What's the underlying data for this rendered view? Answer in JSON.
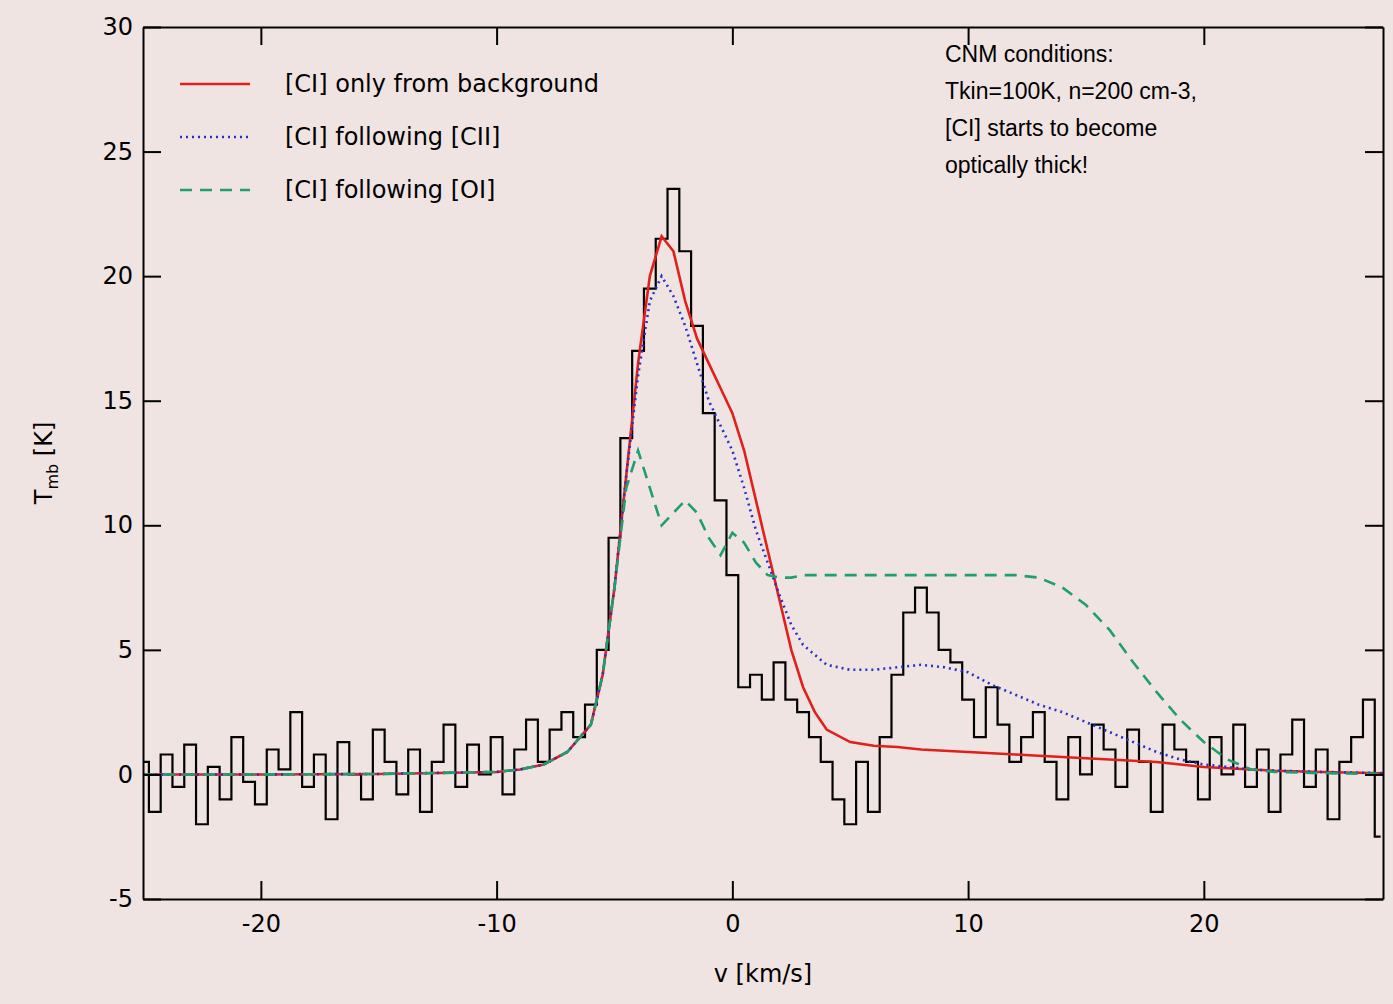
{
  "chart_data": {
    "type": "line",
    "xlabel": "v [km/s]",
    "ylabel": "Tmb [K]",
    "xlim": [
      -25,
      27.6
    ],
    "ylim": [
      -5,
      30
    ],
    "xticks": [
      -20,
      -10,
      0,
      10,
      20
    ],
    "yticks": [
      -5,
      0,
      5,
      10,
      15,
      20,
      25,
      30
    ],
    "legend": "upper left",
    "annotation": [
      "CNM conditions:",
      "Tkin=100K, n=200 cm-3,",
      "[CI] starts to become",
      "optically thick!"
    ],
    "series": [
      {
        "type": "step",
        "color": "#000000",
        "line_style": "solid",
        "x": [
          -25,
          -24.5,
          -24,
          -23.5,
          -23,
          -22.5,
          -22,
          -21.5,
          -21,
          -20.5,
          -20,
          -19.5,
          -19,
          -18.5,
          -18,
          -17.5,
          -17,
          -16.5,
          -16,
          -15.5,
          -15,
          -14.5,
          -14,
          -13.5,
          -13,
          -12.5,
          -12,
          -11.5,
          -11,
          -10.5,
          -10,
          -9.5,
          -9,
          -8.5,
          -8,
          -7.5,
          -7,
          -6.5,
          -6,
          -5.5,
          -5,
          -4.5,
          -4,
          -3.5,
          -3,
          -2.5,
          -2,
          -1.5,
          -1,
          -0.5,
          0,
          0.5,
          1,
          1.5,
          2,
          2.5,
          3,
          3.5,
          4,
          4.5,
          5,
          5.5,
          6,
          6.5,
          7,
          7.5,
          8,
          8.5,
          9,
          9.5,
          10,
          10.5,
          11,
          11.5,
          12,
          12.5,
          13,
          13.5,
          14,
          14.5,
          15,
          15.5,
          16,
          16.5,
          17,
          17.5,
          18,
          18.5,
          19,
          19.5,
          20,
          20.5,
          21,
          21.5,
          22,
          22.5,
          23,
          23.5,
          24,
          24.5,
          25,
          25.5,
          26,
          26.5,
          27,
          27.5
        ],
        "values": [
          0.5,
          -1.5,
          0.8,
          -0.5,
          1.2,
          -2.0,
          0.3,
          -1.0,
          1.5,
          -0.3,
          -1.2,
          1.0,
          0.2,
          2.5,
          -0.5,
          0.8,
          -1.8,
          1.3,
          0.0,
          -1.0,
          1.8,
          0.5,
          -0.8,
          1.0,
          -1.5,
          0.5,
          2.0,
          -0.5,
          1.2,
          0.0,
          1.5,
          -0.8,
          1.0,
          2.2,
          0.5,
          1.8,
          2.5,
          1.5,
          2.8,
          5.0,
          9.5,
          13.5,
          17.0,
          19.5,
          21.5,
          23.5,
          21.0,
          18.0,
          14.5,
          11.0,
          8.0,
          3.5,
          4.0,
          3.0,
          4.5,
          3.0,
          2.5,
          1.5,
          0.5,
          -1.0,
          -2.0,
          0.5,
          -1.5,
          1.5,
          4.0,
          6.5,
          7.5,
          6.5,
          5.0,
          4.5,
          3.0,
          1.5,
          3.5,
          2.0,
          0.5,
          1.5,
          2.5,
          0.5,
          -1.0,
          1.5,
          0.0,
          2.0,
          1.0,
          -0.5,
          1.8,
          0.5,
          -1.5,
          2.0,
          1.0,
          0.5,
          -1.0,
          1.5,
          0.0,
          2.0,
          -0.5,
          1.0,
          -1.5,
          0.8,
          2.2,
          -0.5,
          1.0,
          -1.8,
          0.5,
          1.5,
          3.0,
          -2.5
        ]
      },
      {
        "name": "[CI] only from background",
        "type": "line",
        "color": "#e0201b",
        "line_style": "solid",
        "x": [
          -25,
          -20,
          -15,
          -10,
          -9,
          -8,
          -7,
          -6,
          -5.5,
          -5,
          -4.5,
          -4,
          -3.5,
          -3,
          -2.5,
          -2,
          -1.5,
          -1,
          -0.5,
          0,
          0.5,
          1,
          1.5,
          2,
          2.5,
          3,
          3.5,
          4,
          5,
          6,
          7,
          8,
          9,
          10,
          11,
          12,
          13,
          14,
          15,
          16,
          17,
          18,
          19,
          20,
          21,
          22,
          23,
          25,
          27.6
        ],
        "values": [
          0,
          0,
          0.02,
          0.1,
          0.2,
          0.4,
          0.9,
          2.0,
          4.0,
          7.5,
          12,
          16.5,
          20,
          21.6,
          21,
          19,
          17.5,
          16.5,
          15.5,
          14.5,
          13,
          11,
          9,
          7,
          5,
          3.5,
          2.5,
          1.8,
          1.3,
          1.15,
          1.1,
          1.0,
          0.95,
          0.9,
          0.85,
          0.8,
          0.75,
          0.7,
          0.65,
          0.6,
          0.55,
          0.5,
          0.4,
          0.3,
          0.25,
          0.2,
          0.15,
          0.1,
          0.05
        ]
      },
      {
        "name": "[CI] following [CII]",
        "type": "line",
        "color": "#2233cc",
        "line_style": "dotted",
        "x": [
          -25,
          -20,
          -15,
          -10,
          -9,
          -8,
          -7,
          -6,
          -5.5,
          -5,
          -4.5,
          -4,
          -3.5,
          -3,
          -2.5,
          -2,
          -1.5,
          -1,
          -0.5,
          0,
          0.5,
          1,
          1.5,
          2,
          2.5,
          3,
          3.5,
          4,
          5,
          6,
          7,
          8,
          9,
          10,
          11,
          12,
          13,
          14,
          15,
          16,
          17,
          18,
          19,
          20,
          21,
          22,
          23,
          25,
          27.6
        ],
        "values": [
          0,
          0,
          0.02,
          0.1,
          0.2,
          0.4,
          0.9,
          2.0,
          4.0,
          7.5,
          12,
          16,
          19,
          20,
          19.2,
          18,
          16.5,
          15,
          14,
          13,
          11.5,
          9.8,
          8.5,
          7.2,
          6,
          5.2,
          4.8,
          4.4,
          4.2,
          4.2,
          4.3,
          4.4,
          4.3,
          4.1,
          3.6,
          3.2,
          2.8,
          2.5,
          2.1,
          1.7,
          1.3,
          0.9,
          0.6,
          0.4,
          0.3,
          0.2,
          0.15,
          0.1,
          0.05
        ]
      },
      {
        "name": "[CI] following [OI]",
        "type": "line",
        "color": "#1f9e6e",
        "line_style": "dashed",
        "x": [
          -25,
          -20,
          -15,
          -10,
          -9,
          -8,
          -7,
          -6,
          -5.5,
          -5,
          -4.5,
          -4,
          -3.5,
          -3,
          -2.5,
          -2,
          -1.5,
          -1,
          -0.5,
          0,
          0.5,
          1,
          1.5,
          2,
          2.5,
          3,
          3.5,
          4,
          5,
          6,
          7,
          8,
          9,
          10,
          11,
          12,
          13,
          14,
          15,
          16,
          17,
          18,
          19,
          20,
          21,
          22,
          23,
          25,
          27.6
        ],
        "values": [
          0,
          0,
          0.02,
          0.1,
          0.2,
          0.4,
          0.9,
          2.0,
          4.0,
          7.5,
          11.5,
          13,
          11.5,
          10,
          10.5,
          11,
          10.5,
          9.5,
          8.8,
          9.7,
          9.3,
          8.5,
          8,
          7.9,
          7.9,
          8,
          8,
          8,
          8,
          8,
          8,
          8,
          8,
          8,
          8,
          8,
          7.9,
          7.5,
          6.8,
          5.8,
          4.5,
          3.3,
          2.2,
          1.3,
          0.6,
          0.2,
          0.1,
          0.05,
          0.02
        ]
      }
    ]
  }
}
